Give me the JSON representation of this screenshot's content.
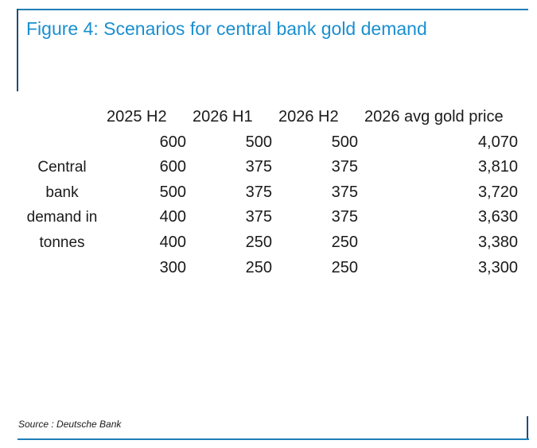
{
  "title": "Figure 4: Scenarios for central bank gold demand",
  "table": {
    "row_label": [
      "Central",
      "bank",
      "demand in",
      "tonnes"
    ],
    "headers": [
      "2025 H2",
      "2026 H1",
      "2026 H2",
      "2026 avg gold price"
    ],
    "rows": [
      [
        "600",
        "500",
        "500",
        "4,070"
      ],
      [
        "600",
        "375",
        "375",
        "3,810"
      ],
      [
        "500",
        "375",
        "375",
        "3,720"
      ],
      [
        "400",
        "375",
        "375",
        "3,630"
      ],
      [
        "400",
        "250",
        "250",
        "3,380"
      ],
      [
        "300",
        "250",
        "250",
        "3,300"
      ]
    ]
  },
  "source": "Source : Deutsche Bank",
  "colors": {
    "title": "#1a8fd0",
    "rule": "#1f7fb8",
    "rule_vertical": "#1f4e79"
  }
}
